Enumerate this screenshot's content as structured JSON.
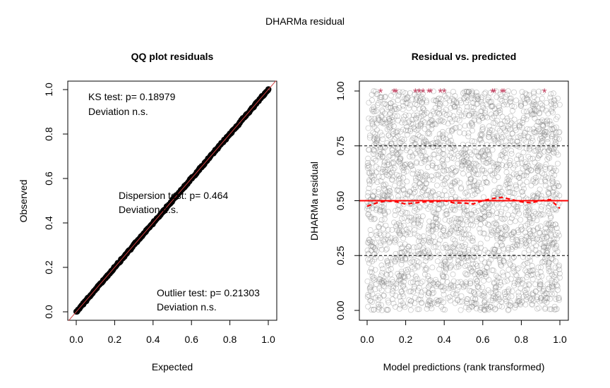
{
  "page_title": "DHARMa residual",
  "chart_data": [
    {
      "type": "scatter",
      "title": "QQ plot residuals",
      "xlabel": "Expected",
      "ylabel": "Observed",
      "xlim": [
        0,
        1
      ],
      "ylim": [
        0,
        1
      ],
      "x_ticks": [
        "0.0",
        "0.2",
        "0.4",
        "0.6",
        "0.8",
        "1.0"
      ],
      "y_ticks": [
        "0.0",
        "0.2",
        "0.4",
        "0.6",
        "0.8",
        "1.0"
      ],
      "points": {
        "x_start": 0.0,
        "x_end": 1.0,
        "y_start": 0.0,
        "y_end": 1.0
      },
      "reference_line": {
        "slope": 1,
        "intercept": 0,
        "color": "#d04040"
      },
      "point_color": "#000000",
      "annotations": [
        {
          "line1": "KS test: p= 0.18979",
          "line2": "Deviation  n.s."
        },
        {
          "line1": "Dispersion test: p= 0.464",
          "line2": "Deviation n.s."
        },
        {
          "line1": "Outlier test: p= 0.21303",
          "line2": "Deviation  n.s."
        }
      ]
    },
    {
      "type": "scatter",
      "title": "Residual vs. predicted",
      "xlabel": "Model predictions (rank transformed)",
      "ylabel": "DHARMa residual",
      "xlim": [
        0,
        1
      ],
      "ylim": [
        0,
        1
      ],
      "x_ticks": [
        "0.0",
        "0.2",
        "0.4",
        "0.6",
        "0.8",
        "1.0"
      ],
      "y_ticks": [
        "0.00",
        "0.25",
        "0.50",
        "0.75",
        "1.00"
      ],
      "point_color": "#777777",
      "quantile_lines": [
        0.25,
        0.5,
        0.75
      ],
      "fitted_median_line": {
        "value": 0.5,
        "color": "#ff0000"
      },
      "quantile_curve": {
        "color": "#ff0000",
        "x": [
          0.0,
          0.05,
          0.1,
          0.15,
          0.2,
          0.25,
          0.3,
          0.35,
          0.4,
          0.45,
          0.5,
          0.55,
          0.6,
          0.65,
          0.7,
          0.75,
          0.8,
          0.85,
          0.9,
          0.95,
          1.0
        ],
        "y": [
          0.475,
          0.49,
          0.5,
          0.495,
          0.485,
          0.49,
          0.495,
          0.495,
          0.5,
          0.49,
          0.49,
          0.485,
          0.5,
          0.51,
          0.515,
          0.505,
          0.495,
          0.49,
          0.5,
          0.505,
          0.465
        ]
      },
      "outliers": {
        "color": "#c0395a",
        "symbol": "*",
        "y": 1.0,
        "x": [
          0.07,
          0.14,
          0.15,
          0.25,
          0.27,
          0.29,
          0.32,
          0.33,
          0.38,
          0.4,
          0.65,
          0.66,
          0.7,
          0.71,
          0.92
        ]
      }
    }
  ]
}
